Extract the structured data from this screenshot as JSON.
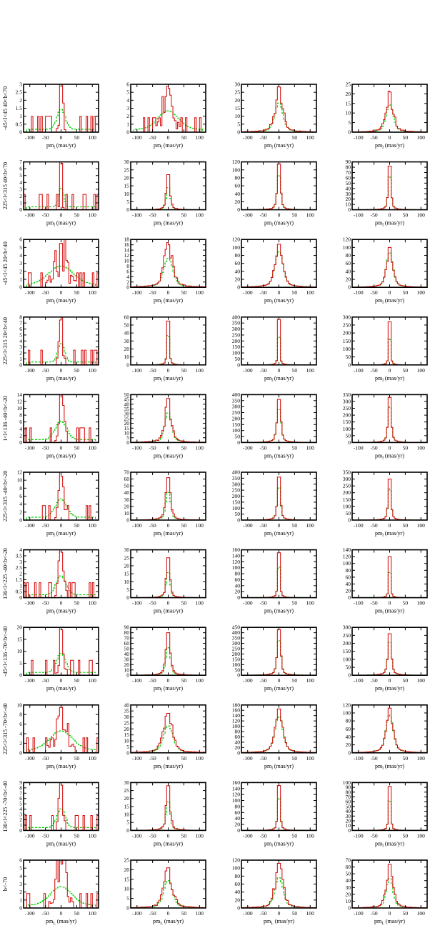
{
  "chart_data": {
    "type": "histogram-grid",
    "rows": 11,
    "cols": 4,
    "xlim": [
      -120,
      120
    ],
    "xticks": [
      -100,
      -50,
      0,
      50,
      100
    ],
    "xlabel_base": "pm",
    "xlabel_units": "(mas/yr)",
    "colors": {
      "primary": "#d40000",
      "secondary": "#00d000"
    },
    "row_labels": [
      "-45<l<45  40<b<70",
      "225<l<315 40<b<70",
      "-45<l<45  20<b<40",
      "225<l<315 20<b<40",
      "1<l<136 -40<b<-20",
      "225<l<315 -40<b<-20",
      "136<l<225 -40<b<-20",
      "-45<l<136 -70<b<-40",
      "225<l<315 -70<b<-40",
      "136<l<225 -70<b<-40",
      "b<-70"
    ],
    "row_subscripts": [
      "l",
      "l",
      "l",
      "l",
      "l",
      "l",
      "l",
      "l",
      "l",
      "l",
      "L"
    ],
    "panels": [
      [
        {
          "ymax": 3,
          "yticks": [
            0,
            0.5,
            1,
            1.5,
            2,
            2.5,
            3
          ],
          "peak": 3,
          "width": 10,
          "shape": "spiky"
        },
        {
          "ymax": 6,
          "yticks": [
            0,
            1,
            2,
            3,
            4,
            5,
            6
          ],
          "peak": 5.5,
          "width": 25,
          "shape": "spiky"
        },
        {
          "ymax": 30,
          "yticks": [
            0,
            5,
            10,
            15,
            20,
            25,
            30
          ],
          "peak": 27,
          "width": 22,
          "shape": "noisy"
        },
        {
          "ymax": 25,
          "yticks": [
            0,
            5,
            10,
            15,
            20,
            25
          ],
          "peak": 21,
          "width": 20,
          "shape": "noisy"
        }
      ],
      [
        {
          "ymax": 7,
          "yticks": [
            0,
            1,
            2,
            3,
            4,
            5,
            6,
            7
          ],
          "peak": 6.8,
          "width": 6,
          "shape": "spiky"
        },
        {
          "ymax": 30,
          "yticks": [
            0,
            5,
            10,
            15,
            20,
            25,
            30
          ],
          "peak": 22,
          "width": 10,
          "shape": "noisy"
        },
        {
          "ymax": 120,
          "yticks": [
            0,
            20,
            40,
            60,
            80,
            100,
            120
          ],
          "peak": 115,
          "width": 9,
          "shape": "smooth"
        },
        {
          "ymax": 90,
          "yticks": [
            0,
            10,
            20,
            30,
            40,
            50,
            60,
            70,
            80,
            90
          ],
          "peak": 82,
          "width": 8,
          "shape": "smooth"
        }
      ],
      [
        {
          "ymax": 6,
          "yticks": [
            0,
            1,
            2,
            3,
            4,
            5,
            6
          ],
          "peak": 5.5,
          "width": 30,
          "shape": "spiky"
        },
        {
          "ymax": 18,
          "yticks": [
            0,
            2,
            4,
            6,
            8,
            10,
            12,
            14,
            16,
            18
          ],
          "peak": 16,
          "width": 25,
          "shape": "noisy"
        },
        {
          "ymax": 120,
          "yticks": [
            0,
            20,
            40,
            60,
            80,
            100,
            120
          ],
          "peak": 108,
          "width": 22,
          "shape": "smooth"
        },
        {
          "ymax": 120,
          "yticks": [
            0,
            20,
            40,
            60,
            80,
            100,
            120
          ],
          "peak": 100,
          "width": 18,
          "shape": "smooth"
        }
      ],
      [
        {
          "ymax": 8,
          "yticks": [
            0,
            1,
            2,
            3,
            4,
            5,
            6,
            7,
            8
          ],
          "peak": 7.5,
          "width": 8,
          "shape": "spiky"
        },
        {
          "ymax": 60,
          "yticks": [
            0,
            10,
            20,
            30,
            40,
            50,
            60
          ],
          "peak": 55,
          "width": 6,
          "shape": "smooth"
        },
        {
          "ymax": 400,
          "yticks": [
            0,
            50,
            100,
            150,
            200,
            250,
            300,
            350,
            400
          ],
          "peak": 380,
          "width": 5,
          "shape": "smooth"
        },
        {
          "ymax": 300,
          "yticks": [
            0,
            50,
            100,
            150,
            200,
            250,
            300
          ],
          "peak": 270,
          "width": 5,
          "shape": "smooth"
        }
      ],
      [
        {
          "ymax": 14,
          "yticks": [
            0,
            2,
            4,
            6,
            8,
            10,
            12,
            14
          ],
          "peak": 13,
          "width": 14,
          "shape": "spiky"
        },
        {
          "ymax": 50,
          "yticks": [
            0,
            5,
            10,
            15,
            20,
            25,
            30,
            35,
            40,
            45,
            50
          ],
          "peak": 46,
          "width": 18,
          "shape": "noisy"
        },
        {
          "ymax": 400,
          "yticks": [
            0,
            50,
            100,
            150,
            200,
            250,
            300,
            350,
            400
          ],
          "peak": 360,
          "width": 11,
          "shape": "smooth"
        },
        {
          "ymax": 350,
          "yticks": [
            0,
            50,
            100,
            150,
            200,
            250,
            300,
            350
          ],
          "peak": 330,
          "width": 9,
          "shape": "smooth"
        }
      ],
      [
        {
          "ymax": 12,
          "yticks": [
            0,
            2,
            4,
            6,
            8,
            10,
            12
          ],
          "peak": 11,
          "width": 14,
          "shape": "spiky"
        },
        {
          "ymax": 70,
          "yticks": [
            0,
            10,
            20,
            30,
            40,
            50,
            60,
            70
          ],
          "peak": 62,
          "width": 13,
          "shape": "noisy"
        },
        {
          "ymax": 400,
          "yticks": [
            0,
            50,
            100,
            150,
            200,
            250,
            300,
            350,
            400
          ],
          "peak": 360,
          "width": 9,
          "shape": "smooth"
        },
        {
          "ymax": 350,
          "yticks": [
            0,
            50,
            100,
            150,
            200,
            250,
            300,
            350
          ],
          "peak": 300,
          "width": 8,
          "shape": "smooth"
        }
      ],
      [
        {
          "ymax": 4,
          "yticks": [
            0,
            0.5,
            1,
            1.5,
            2,
            2.5,
            3,
            3.5,
            4
          ],
          "peak": 3.8,
          "width": 12,
          "shape": "spiky"
        },
        {
          "ymax": 30,
          "yticks": [
            0,
            5,
            10,
            15,
            20,
            25,
            30
          ],
          "peak": 25,
          "width": 10,
          "shape": "noisy"
        },
        {
          "ymax": 160,
          "yticks": [
            0,
            20,
            40,
            60,
            80,
            100,
            120,
            140,
            160
          ],
          "peak": 150,
          "width": 6,
          "shape": "smooth"
        },
        {
          "ymax": 140,
          "yticks": [
            0,
            20,
            40,
            60,
            80,
            100,
            120,
            140
          ],
          "peak": 120,
          "width": 5,
          "shape": "smooth"
        }
      ],
      [
        {
          "ymax": 20,
          "yticks": [
            0,
            5,
            10,
            15,
            20
          ],
          "peak": 19,
          "width": 11,
          "shape": "spiky"
        },
        {
          "ymax": 90,
          "yticks": [
            0,
            10,
            20,
            30,
            40,
            50,
            60,
            70,
            80,
            90
          ],
          "peak": 80,
          "width": 12,
          "shape": "noisy"
        },
        {
          "ymax": 450,
          "yticks": [
            0,
            50,
            100,
            150,
            200,
            250,
            300,
            350,
            400,
            450
          ],
          "peak": 430,
          "width": 10,
          "shape": "smooth"
        },
        {
          "ymax": 300,
          "yticks": [
            0,
            50,
            100,
            150,
            200,
            250,
            300
          ],
          "peak": 260,
          "width": 10,
          "shape": "smooth"
        }
      ],
      [
        {
          "ymax": 10,
          "yticks": [
            0,
            2,
            4,
            6,
            8,
            10
          ],
          "peak": 9.5,
          "width": 28,
          "shape": "spiky"
        },
        {
          "ymax": 40,
          "yticks": [
            0,
            5,
            10,
            15,
            20,
            25,
            30,
            35,
            40
          ],
          "peak": 33,
          "width": 26,
          "shape": "noisy"
        },
        {
          "ymax": 180,
          "yticks": [
            0,
            20,
            40,
            60,
            80,
            100,
            120,
            140,
            160,
            180
          ],
          "peak": 165,
          "width": 22,
          "shape": "smooth"
        },
        {
          "ymax": 120,
          "yticks": [
            0,
            20,
            40,
            60,
            80,
            100,
            120
          ],
          "peak": 112,
          "width": 20,
          "shape": "smooth"
        }
      ],
      [
        {
          "ymax": 9,
          "yticks": [
            0,
            1,
            2,
            3,
            4,
            5,
            6,
            7,
            8,
            9
          ],
          "peak": 8.5,
          "width": 10,
          "shape": "spiky"
        },
        {
          "ymax": 30,
          "yticks": [
            0,
            5,
            10,
            15,
            20,
            25,
            30
          ],
          "peak": 28,
          "width": 11,
          "shape": "noisy"
        },
        {
          "ymax": 160,
          "yticks": [
            0,
            20,
            40,
            60,
            80,
            100,
            120,
            140,
            160
          ],
          "peak": 150,
          "width": 7,
          "shape": "smooth"
        },
        {
          "ymax": 100,
          "yticks": [
            0,
            10,
            20,
            30,
            40,
            50,
            60,
            70,
            80,
            90,
            100
          ],
          "peak": 92,
          "width": 6,
          "shape": "smooth"
        }
      ],
      [
        {
          "ymax": 6,
          "yticks": [
            0,
            1,
            2,
            3,
            4,
            5,
            6
          ],
          "peak": 5.5,
          "width": 26,
          "shape": "spiky"
        },
        {
          "ymax": 25,
          "yticks": [
            0,
            5,
            10,
            15,
            20,
            25
          ],
          "peak": 21,
          "width": 24,
          "shape": "noisy"
        },
        {
          "ymax": 120,
          "yticks": [
            0,
            20,
            40,
            60,
            80,
            100,
            120
          ],
          "peak": 112,
          "width": 22,
          "shape": "noisy"
        },
        {
          "ymax": 70,
          "yticks": [
            0,
            10,
            20,
            30,
            40,
            50,
            60,
            70
          ],
          "peak": 64,
          "width": 18,
          "shape": "noisy"
        }
      ]
    ]
  }
}
